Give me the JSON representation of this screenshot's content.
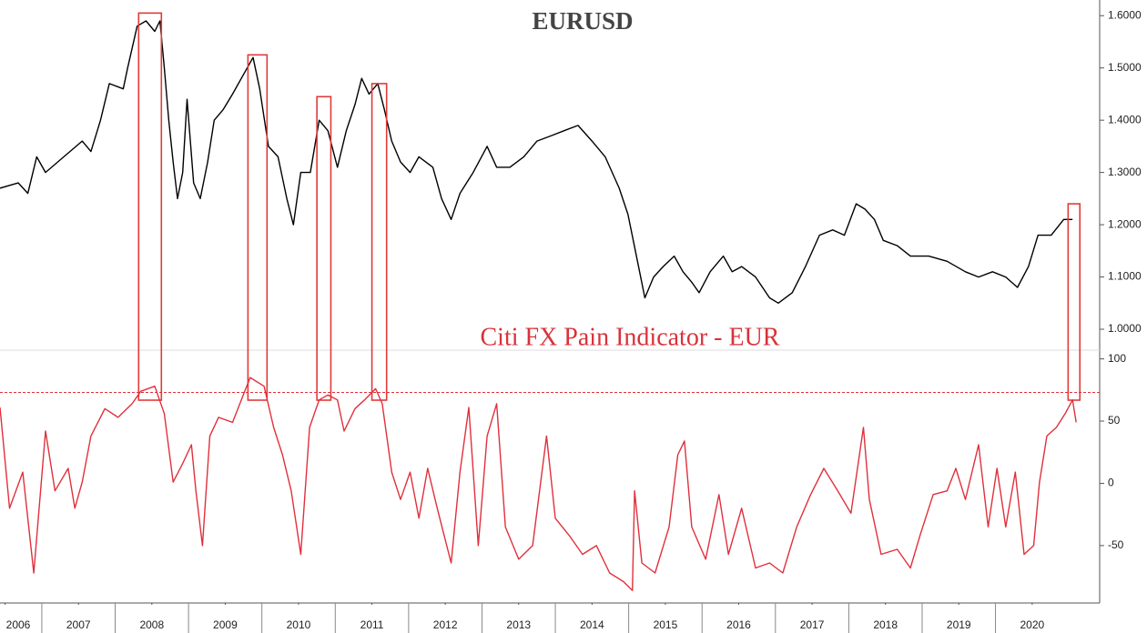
{
  "chart_data": [
    {
      "type": "line",
      "title": "EURUSD",
      "color": "#000000",
      "xlim": [
        2006.43,
        2021.42
      ],
      "ylim": [
        0.96,
        1.63
      ],
      "yticks": [
        {
          "value": 1.0,
          "label": "1.0000"
        },
        {
          "value": 1.1,
          "label": "1.1000"
        },
        {
          "value": 1.2,
          "label": "1.2000"
        },
        {
          "value": 1.3,
          "label": "1.3000"
        },
        {
          "value": 1.4,
          "label": "1.4000"
        },
        {
          "value": 1.5,
          "label": "1.5000"
        },
        {
          "value": 1.6,
          "label": "1.6000"
        }
      ],
      "x": [
        2006.43,
        2006.68,
        2006.81,
        2006.93,
        2007.05,
        2007.3,
        2007.55,
        2007.67,
        2007.8,
        2007.92,
        2008.11,
        2008.17,
        2008.3,
        2008.42,
        2008.54,
        2008.61,
        2008.67,
        2008.73,
        2008.79,
        2008.85,
        2008.92,
        2008.98,
        2009.07,
        2009.16,
        2009.26,
        2009.35,
        2009.47,
        2009.6,
        2009.72,
        2009.88,
        2009.97,
        2010.09,
        2010.22,
        2010.34,
        2010.43,
        2010.53,
        2010.66,
        2010.78,
        2010.9,
        2011.03,
        2011.15,
        2011.27,
        2011.36,
        2011.46,
        2011.58,
        2011.67,
        2011.77,
        2011.89,
        2012.02,
        2012.14,
        2012.33,
        2012.45,
        2012.58,
        2012.7,
        2012.88,
        2013.07,
        2013.2,
        2013.38,
        2013.57,
        2013.75,
        2013.94,
        2014.12,
        2014.31,
        2014.5,
        2014.68,
        2014.87,
        2014.99,
        2015.12,
        2015.22,
        2015.34,
        2015.47,
        2015.62,
        2015.74,
        2015.86,
        2015.96,
        2016.11,
        2016.29,
        2016.41,
        2016.54,
        2016.73,
        2016.92,
        2017.04,
        2017.23,
        2017.41,
        2017.6,
        2017.78,
        2017.94,
        2018.1,
        2018.22,
        2018.35,
        2018.47,
        2018.66,
        2018.84,
        2019.09,
        2019.34,
        2019.59,
        2019.77,
        2019.96,
        2020.14,
        2020.3,
        2020.45,
        2020.58,
        2020.76,
        2020.93,
        2021.05
      ],
      "values": [
        1.27,
        1.28,
        1.26,
        1.33,
        1.3,
        1.33,
        1.36,
        1.34,
        1.4,
        1.47,
        1.46,
        1.5,
        1.58,
        1.59,
        1.57,
        1.59,
        1.5,
        1.4,
        1.32,
        1.25,
        1.3,
        1.44,
        1.28,
        1.25,
        1.32,
        1.4,
        1.42,
        1.45,
        1.48,
        1.52,
        1.46,
        1.35,
        1.33,
        1.25,
        1.2,
        1.3,
        1.3,
        1.4,
        1.38,
        1.31,
        1.38,
        1.43,
        1.48,
        1.45,
        1.47,
        1.42,
        1.36,
        1.32,
        1.3,
        1.33,
        1.31,
        1.25,
        1.21,
        1.26,
        1.3,
        1.35,
        1.31,
        1.31,
        1.33,
        1.36,
        1.37,
        1.38,
        1.39,
        1.36,
        1.33,
        1.27,
        1.22,
        1.13,
        1.06,
        1.1,
        1.12,
        1.14,
        1.11,
        1.09,
        1.07,
        1.11,
        1.14,
        1.11,
        1.12,
        1.1,
        1.06,
        1.05,
        1.07,
        1.12,
        1.18,
        1.19,
        1.18,
        1.24,
        1.23,
        1.21,
        1.17,
        1.16,
        1.14,
        1.14,
        1.13,
        1.11,
        1.1,
        1.11,
        1.1,
        1.08,
        1.12,
        1.18,
        1.18,
        1.21,
        1.21
      ],
      "highlight_color": "#e03a3a",
      "highlights": [
        {
          "x": [
            2008.32,
            2008.63
          ],
          "y": 1.605
        },
        {
          "x": [
            2009.81,
            2010.07
          ],
          "y": 1.525
        },
        {
          "x": [
            2010.75,
            2010.94
          ],
          "y": 1.445
        },
        {
          "x": [
            2011.5,
            2011.7
          ],
          "y": 1.47
        },
        {
          "x": [
            2020.99,
            2021.15
          ],
          "y": 1.24
        }
      ]
    },
    {
      "type": "line",
      "title": "Citi FX Pain Indicator - EUR",
      "color": "#e0303c",
      "xlim": [
        2006.43,
        2021.42
      ],
      "ylim": [
        -91,
        107
      ],
      "yticks": [
        -50,
        0,
        50,
        100
      ],
      "threshold": 73,
      "xticks": [
        {
          "value": 2006.5,
          "label": "2006"
        },
        {
          "value": 2007.5,
          "label": "2007"
        },
        {
          "value": 2008.5,
          "label": "2008"
        },
        {
          "value": 2009.5,
          "label": "2009"
        },
        {
          "value": 2010.5,
          "label": "2010"
        },
        {
          "value": 2011.5,
          "label": "2011"
        },
        {
          "value": 2012.5,
          "label": "2012"
        },
        {
          "value": 2013.5,
          "label": "2013"
        },
        {
          "value": 2014.5,
          "label": "2014"
        },
        {
          "value": 2015.5,
          "label": "2015"
        },
        {
          "value": 2016.5,
          "label": "2016"
        },
        {
          "value": 2017.5,
          "label": "2017"
        },
        {
          "value": 2018.5,
          "label": "2018"
        },
        {
          "value": 2019.5,
          "label": "2019"
        },
        {
          "value": 2020.5,
          "label": "2020"
        }
      ],
      "x": [
        2006.43,
        2006.56,
        2006.74,
        2006.89,
        2007.05,
        2007.18,
        2007.36,
        2007.45,
        2007.55,
        2007.67,
        2007.86,
        2008.04,
        2008.23,
        2008.35,
        2008.54,
        2008.67,
        2008.79,
        2008.92,
        2009.04,
        2009.1,
        2009.19,
        2009.29,
        2009.41,
        2009.6,
        2009.72,
        2009.84,
        2010.03,
        2010.16,
        2010.28,
        2010.4,
        2010.53,
        2010.65,
        2010.78,
        2010.9,
        2011.03,
        2011.12,
        2011.27,
        2011.4,
        2011.55,
        2011.64,
        2011.77,
        2011.89,
        2012.02,
        2012.14,
        2012.26,
        2012.39,
        2012.58,
        2012.7,
        2012.82,
        2012.95,
        2013.07,
        2013.2,
        2013.32,
        2013.5,
        2013.69,
        2013.88,
        2014.0,
        2014.19,
        2014.37,
        2014.56,
        2014.74,
        2014.93,
        2015.05,
        2015.08,
        2015.18,
        2015.36,
        2015.55,
        2015.67,
        2015.76,
        2015.86,
        2016.05,
        2016.23,
        2016.36,
        2016.54,
        2016.73,
        2016.92,
        2017.1,
        2017.29,
        2017.48,
        2017.66,
        2017.85,
        2018.03,
        2018.2,
        2018.28,
        2018.44,
        2018.66,
        2018.84,
        2018.97,
        2019.15,
        2019.34,
        2019.46,
        2019.59,
        2019.77,
        2019.9,
        2020.02,
        2020.14,
        2020.27,
        2020.39,
        2020.52,
        2020.6,
        2020.7,
        2020.83,
        2020.95,
        2021.05,
        2021.1
      ],
      "values": [
        61,
        -20,
        9,
        -72,
        42,
        -6,
        12,
        -20,
        1,
        38,
        60,
        53,
        64,
        74,
        78,
        56,
        1,
        16,
        31,
        -6,
        -50,
        38,
        53,
        49,
        67,
        85,
        78,
        45,
        23,
        -6,
        -57,
        45,
        67,
        71,
        67,
        42,
        60,
        67,
        76,
        64,
        9,
        -13,
        9,
        -28,
        12,
        -20,
        -64,
        9,
        61,
        -50,
        38,
        64,
        -35,
        -61,
        -50,
        38,
        -28,
        -42,
        -57,
        -50,
        -72,
        -79,
        -86,
        -6,
        -64,
        -72,
        -35,
        23,
        34,
        -35,
        -61,
        -9,
        -57,
        -20,
        -68,
        -64,
        -72,
        -35,
        -9,
        12,
        -6,
        -24,
        45,
        -13,
        -57,
        -53,
        -68,
        -42,
        -9,
        -6,
        12,
        -13,
        31,
        -35,
        12,
        -35,
        9,
        -57,
        -50,
        1,
        38,
        45,
        56,
        67,
        49
      ]
    }
  ]
}
